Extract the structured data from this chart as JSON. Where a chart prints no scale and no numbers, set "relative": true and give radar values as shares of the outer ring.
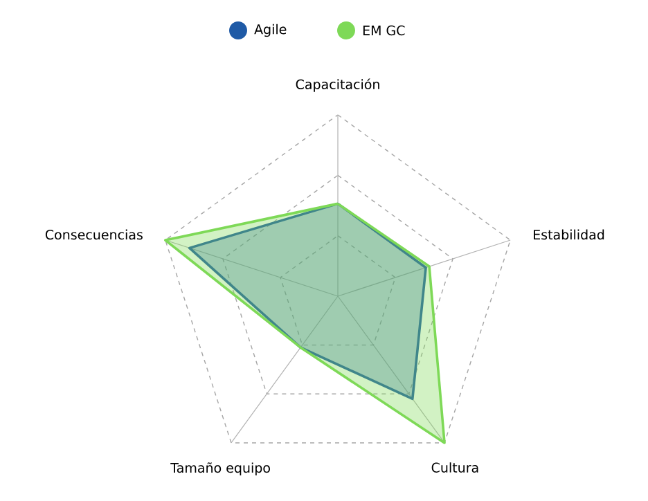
{
  "chart_data": {
    "type": "radar",
    "categories": [
      "Capacitación",
      "Estabilidad",
      "Cultura",
      "Tamaño equipo",
      "Consecuencias"
    ],
    "relative": true,
    "grid": true,
    "legend": "top",
    "marker": "none",
    "line_style": "solid",
    "series": [
      {
        "name": "Agile",
        "color": "#1f5aa6",
        "values": [
          0.51,
          0.51,
          0.7,
          0.35,
          0.86
        ]
      },
      {
        "name": "EM GC",
        "color": "#7ed957",
        "values": [
          0.51,
          0.53,
          1.0,
          0.35,
          1.0
        ]
      }
    ]
  }
}
